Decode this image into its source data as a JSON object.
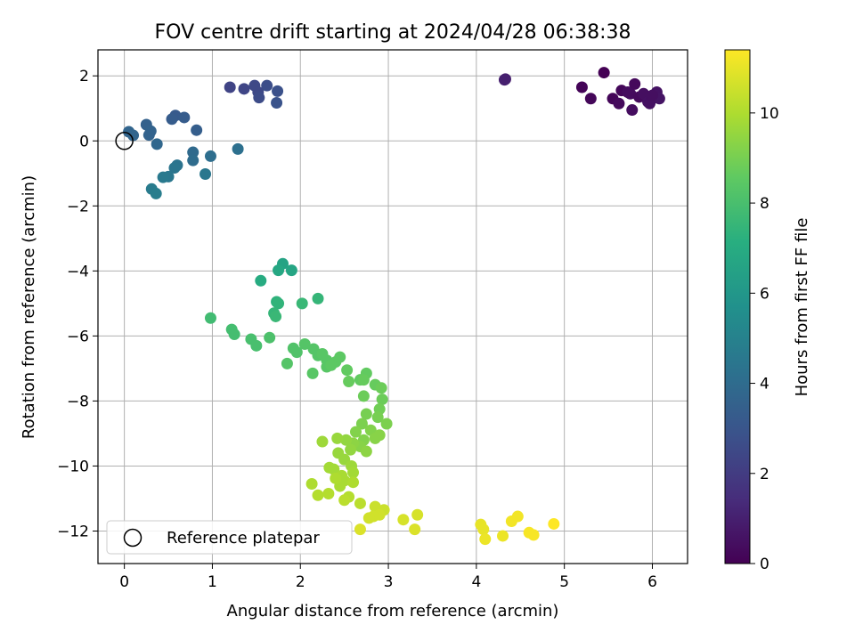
{
  "chart_data": {
    "type": "scatter",
    "title": "FOV centre drift starting at 2024/04/28 06:38:38",
    "xlabel": "Angular distance from reference (arcmin)",
    "ylabel": "Rotation from reference (arcmin)",
    "xlim": [
      -0.3,
      6.4
    ],
    "ylim": [
      -13.0,
      2.8
    ],
    "x_ticks": [
      0,
      1,
      2,
      3,
      4,
      5,
      6
    ],
    "y_ticks": [
      2,
      0,
      -2,
      -4,
      -6,
      -8,
      -10,
      -12
    ],
    "grid": true,
    "legend": {
      "placement": "lower-left",
      "entries": [
        {
          "label": "Reference platepar",
          "marker": "open-circle"
        }
      ]
    },
    "reference_point": {
      "x": 0,
      "y": 0
    },
    "colorbar": {
      "label": "Hours from first FF file",
      "min": 0,
      "max": 11.4,
      "ticks": [
        0,
        2,
        4,
        6,
        8,
        10
      ],
      "colormap": "viridis"
    },
    "series": [
      {
        "points": [
          [
            5.45,
            2.1,
            0.0
          ],
          [
            5.2,
            1.65,
            0.1
          ],
          [
            5.3,
            1.3,
            0.2
          ],
          [
            5.55,
            1.3,
            0.15
          ],
          [
            5.62,
            1.15,
            0.3
          ],
          [
            5.65,
            1.55,
            0.2
          ],
          [
            5.75,
            1.45,
            0.35
          ],
          [
            5.8,
            1.75,
            0.25
          ],
          [
            5.77,
            0.95,
            0.4
          ],
          [
            5.85,
            1.35,
            0.3
          ],
          [
            5.9,
            1.45,
            0.45
          ],
          [
            5.95,
            1.2,
            0.5
          ],
          [
            6.0,
            1.3,
            0.4
          ],
          [
            6.05,
            1.5,
            0.55
          ],
          [
            6.08,
            1.3,
            0.6
          ],
          [
            5.97,
            1.15,
            0.5
          ],
          [
            6.0,
            1.4,
            0.45
          ],
          [
            5.72,
            1.5,
            0.35
          ],
          [
            4.33,
            1.9,
            0.9
          ],
          [
            4.32,
            1.88,
            1.0
          ],
          [
            1.2,
            1.65,
            2.3
          ],
          [
            1.36,
            1.6,
            2.4
          ],
          [
            1.48,
            1.7,
            2.5
          ],
          [
            1.52,
            1.5,
            2.5
          ],
          [
            1.53,
            1.33,
            2.6
          ],
          [
            1.62,
            1.7,
            2.7
          ],
          [
            1.74,
            1.53,
            2.8
          ],
          [
            1.73,
            1.17,
            2.9
          ],
          [
            0.58,
            0.78,
            3.2
          ],
          [
            0.54,
            0.67,
            3.3
          ],
          [
            0.68,
            0.72,
            3.3
          ],
          [
            0.82,
            0.33,
            3.4
          ],
          [
            0.25,
            0.5,
            3.5
          ],
          [
            0.3,
            0.3,
            3.6
          ],
          [
            0.28,
            0.18,
            3.6
          ],
          [
            0.05,
            0.28,
            3.7
          ],
          [
            0.1,
            0.17,
            3.7
          ],
          [
            0.37,
            -0.1,
            3.8
          ],
          [
            0.78,
            -0.35,
            3.9
          ],
          [
            0.78,
            -0.6,
            4.0
          ],
          [
            0.98,
            -0.47,
            4.1
          ],
          [
            1.29,
            -0.25,
            4.2
          ],
          [
            0.6,
            -0.75,
            4.3
          ],
          [
            0.57,
            -0.83,
            4.4
          ],
          [
            0.92,
            -1.02,
            4.5
          ],
          [
            0.5,
            -1.1,
            4.5
          ],
          [
            0.44,
            -1.12,
            4.6
          ],
          [
            0.31,
            -1.48,
            4.7
          ],
          [
            0.36,
            -1.62,
            4.8
          ],
          [
            1.8,
            -3.78,
            6.6
          ],
          [
            1.9,
            -3.98,
            6.7
          ],
          [
            1.75,
            -3.98,
            6.8
          ],
          [
            1.55,
            -4.3,
            7.0
          ],
          [
            1.73,
            -4.95,
            7.3
          ],
          [
            1.75,
            -5.0,
            7.4
          ],
          [
            1.7,
            -5.3,
            7.5
          ],
          [
            1.72,
            -5.4,
            7.6
          ],
          [
            2.2,
            -4.85,
            7.5
          ],
          [
            2.02,
            -5.0,
            7.6
          ],
          [
            0.98,
            -5.45,
            7.8
          ],
          [
            1.22,
            -5.8,
            7.9
          ],
          [
            1.25,
            -5.95,
            7.9
          ],
          [
            1.44,
            -6.1,
            8.0
          ],
          [
            1.5,
            -6.3,
            8.0
          ],
          [
            1.65,
            -6.05,
            8.1
          ],
          [
            1.92,
            -6.38,
            8.2
          ],
          [
            1.96,
            -6.5,
            8.2
          ],
          [
            2.05,
            -6.25,
            8.3
          ],
          [
            2.15,
            -6.4,
            8.3
          ],
          [
            2.2,
            -6.6,
            8.3
          ],
          [
            2.25,
            -6.55,
            8.4
          ],
          [
            2.3,
            -6.75,
            8.4
          ],
          [
            2.3,
            -6.95,
            8.4
          ],
          [
            2.4,
            -6.8,
            8.5
          ],
          [
            2.45,
            -6.65,
            8.5
          ],
          [
            2.35,
            -6.9,
            8.5
          ],
          [
            1.85,
            -6.85,
            8.3
          ],
          [
            2.14,
            -7.15,
            8.4
          ],
          [
            2.53,
            -7.05,
            8.6
          ],
          [
            2.68,
            -7.35,
            8.6
          ],
          [
            2.75,
            -7.15,
            8.6
          ],
          [
            2.72,
            -7.35,
            8.7
          ],
          [
            2.55,
            -7.4,
            8.7
          ],
          [
            2.85,
            -7.5,
            8.7
          ],
          [
            2.92,
            -7.6,
            8.8
          ],
          [
            2.93,
            -7.95,
            8.8
          ],
          [
            2.9,
            -8.25,
            8.9
          ],
          [
            2.72,
            -7.85,
            8.8
          ],
          [
            2.75,
            -8.4,
            9.0
          ],
          [
            2.88,
            -8.5,
            9.0
          ],
          [
            2.7,
            -8.7,
            9.1
          ],
          [
            2.98,
            -8.7,
            9.1
          ],
          [
            2.8,
            -8.9,
            9.2
          ],
          [
            2.63,
            -8.95,
            9.2
          ],
          [
            2.72,
            -9.2,
            9.2
          ],
          [
            2.9,
            -9.05,
            9.3
          ],
          [
            2.85,
            -9.15,
            9.3
          ],
          [
            2.68,
            -9.4,
            9.3
          ],
          [
            2.75,
            -9.55,
            9.4
          ],
          [
            2.6,
            -9.3,
            9.4
          ],
          [
            2.57,
            -9.5,
            9.5
          ],
          [
            2.52,
            -9.2,
            9.5
          ],
          [
            2.42,
            -9.15,
            9.6
          ],
          [
            2.43,
            -9.6,
            9.6
          ],
          [
            2.5,
            -9.8,
            9.6
          ],
          [
            2.25,
            -9.25,
            9.7
          ],
          [
            2.58,
            -10.0,
            9.7
          ],
          [
            2.33,
            -10.05,
            9.8
          ],
          [
            2.38,
            -10.1,
            9.8
          ],
          [
            2.6,
            -10.2,
            9.8
          ],
          [
            2.47,
            -10.3,
            9.9
          ],
          [
            2.5,
            -10.45,
            9.9
          ],
          [
            2.45,
            -10.62,
            9.9
          ],
          [
            2.4,
            -10.38,
            10.0
          ],
          [
            2.6,
            -10.5,
            10.0
          ],
          [
            2.13,
            -10.55,
            10.0
          ],
          [
            2.2,
            -10.9,
            10.1
          ],
          [
            2.32,
            -10.85,
            10.1
          ],
          [
            2.55,
            -10.95,
            10.1
          ],
          [
            2.5,
            -11.05,
            10.2
          ],
          [
            2.68,
            -11.15,
            10.2
          ],
          [
            2.85,
            -11.25,
            10.5
          ],
          [
            2.95,
            -11.35,
            10.5
          ],
          [
            2.9,
            -11.5,
            10.6
          ],
          [
            2.83,
            -11.55,
            10.6
          ],
          [
            2.78,
            -11.6,
            10.6
          ],
          [
            3.17,
            -11.65,
            10.7
          ],
          [
            3.33,
            -11.5,
            10.7
          ],
          [
            3.3,
            -11.95,
            10.8
          ],
          [
            2.68,
            -11.95,
            10.8
          ],
          [
            4.05,
            -11.8,
            11.0
          ],
          [
            4.08,
            -11.95,
            11.0
          ],
          [
            4.1,
            -12.25,
            11.1
          ],
          [
            4.3,
            -12.15,
            11.1
          ],
          [
            4.4,
            -11.7,
            11.2
          ],
          [
            4.47,
            -11.55,
            11.2
          ],
          [
            4.6,
            -12.05,
            11.3
          ],
          [
            4.65,
            -12.12,
            11.3
          ],
          [
            4.88,
            -11.78,
            11.4
          ]
        ]
      }
    ]
  }
}
